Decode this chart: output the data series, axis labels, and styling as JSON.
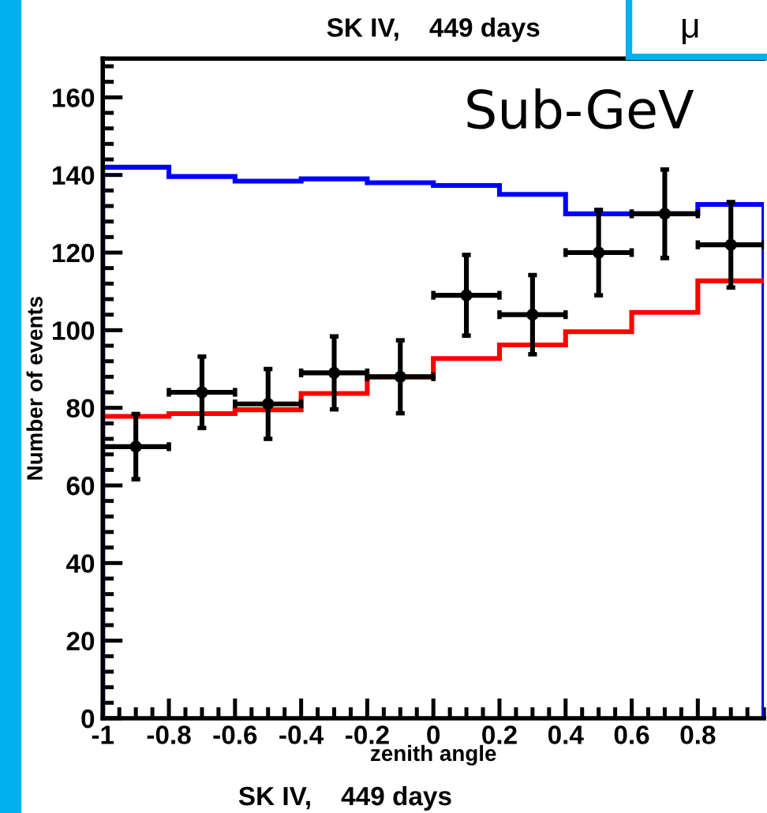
{
  "chart_data": {
    "type": "histogram",
    "title": "SK IV,    449 days",
    "xlabel": "zenith angle",
    "ylabel": "Number of events",
    "annotations": [
      {
        "text": "Sub-GeV"
      },
      {
        "text": "μ"
      },
      {
        "text": "SK IV,    449 days"
      }
    ],
    "bins": [
      -1,
      -0.8,
      -0.6,
      -0.4,
      -0.2,
      0,
      0.2,
      0.4,
      0.6,
      0.8,
      1
    ],
    "series": [
      {
        "color": "#0000ff",
        "values": [
          142,
          139.6,
          138.4,
          139,
          138,
          137.3,
          135,
          130,
          130,
          132.4
        ]
      },
      {
        "color": "#ff0000",
        "values": [
          77.8,
          78.5,
          79.5,
          83.7,
          88,
          92.7,
          96.2,
          99.6,
          104.6,
          112.7
        ]
      },
      {
        "type": "scatter",
        "color": "#000000",
        "marker": "circle",
        "x": [
          -0.9,
          -0.7,
          -0.5,
          -0.3,
          -0.1,
          0.1,
          0.3,
          0.5,
          0.7,
          0.9
        ],
        "values": [
          70,
          84,
          81,
          89,
          88,
          109,
          104,
          120,
          130,
          122
        ],
        "errors": [
          8.4,
          9.2,
          9,
          9.4,
          9.4,
          10.4,
          10.2,
          11,
          11.4,
          11
        ],
        "xerrors": [
          0.1,
          0.1,
          0.1,
          0.1,
          0.1,
          0.1,
          0.1,
          0.1,
          0.1,
          0.1
        ]
      }
    ],
    "xlim": [
      -1,
      1
    ],
    "xticks": [
      -1,
      -0.8,
      -0.6,
      -0.4,
      -0.2,
      0,
      0.2,
      0.4,
      0.6,
      0.8
    ],
    "ylim": [
      0,
      170
    ],
    "yticks": [
      0,
      20,
      40,
      60,
      80,
      100,
      120,
      140,
      160
    ],
    "grid": false,
    "legend": false
  }
}
